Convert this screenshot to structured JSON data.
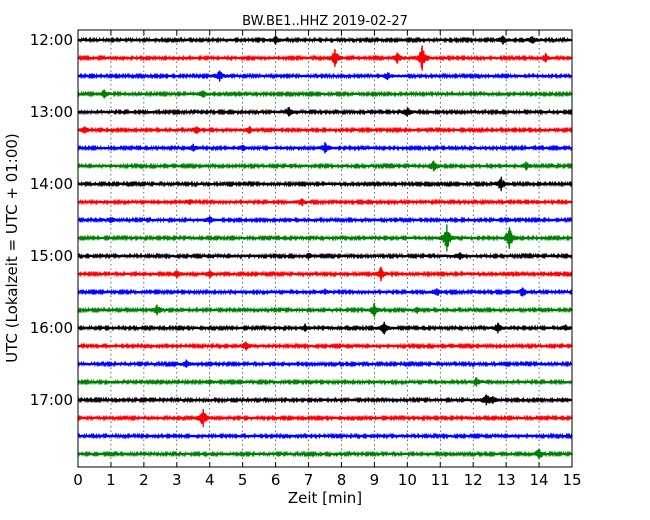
{
  "chart_data": {
    "type": "line",
    "title": "BW.BE1..HHZ 2019-02-27",
    "xlabel": "Zeit  [min]",
    "ylabel": "UTC (Lokalzeit = UTC + 01:00)",
    "xlim": [
      0,
      15
    ],
    "x_ticks": [
      "0",
      "1",
      "2",
      "3",
      "4",
      "5",
      "6",
      "7",
      "8",
      "9",
      "10",
      "11",
      "12",
      "13",
      "14",
      "15"
    ],
    "y_ticks": [
      "12:00",
      "13:00",
      "14:00",
      "15:00",
      "16:00",
      "17:00"
    ],
    "grid": "vertical dotted lines at each minute",
    "trace_colors": [
      "#000000",
      "#ff0000",
      "#0000ff",
      "#008000"
    ],
    "trace_interval_min": 15,
    "traces": [
      {
        "start": "12:00",
        "events": [
          [
            6.0,
            0.5
          ],
          [
            12.9,
            0.5
          ],
          [
            13.8,
            0.4
          ]
        ]
      },
      {
        "start": "12:15",
        "events": [
          [
            7.8,
            1.0
          ],
          [
            9.7,
            0.6
          ],
          [
            10.45,
            1.4
          ],
          [
            14.2,
            0.5
          ]
        ]
      },
      {
        "start": "12:30",
        "events": [
          [
            4.3,
            0.6
          ],
          [
            9.4,
            0.4
          ]
        ]
      },
      {
        "start": "12:45",
        "events": [
          [
            0.8,
            0.5
          ],
          [
            3.8,
            0.4
          ]
        ]
      },
      {
        "start": "13:00",
        "events": [
          [
            6.4,
            0.5
          ],
          [
            10.0,
            0.5
          ]
        ]
      },
      {
        "start": "13:15",
        "events": [
          [
            0.2,
            0.4
          ],
          [
            3.6,
            0.4
          ],
          [
            5.2,
            0.4
          ]
        ]
      },
      {
        "start": "13:30",
        "events": [
          [
            3.5,
            0.4
          ],
          [
            7.5,
            0.6
          ],
          [
            5.0,
            0.3
          ]
        ]
      },
      {
        "start": "13:45",
        "events": [
          [
            10.8,
            0.6
          ],
          [
            13.6,
            0.5
          ]
        ]
      },
      {
        "start": "14:00",
        "events": [
          [
            12.85,
            0.8
          ]
        ]
      },
      {
        "start": "14:15",
        "events": [
          [
            6.8,
            0.4
          ],
          [
            3.4,
            0.3
          ]
        ]
      },
      {
        "start": "14:30",
        "events": [
          [
            4.0,
            0.4
          ],
          [
            1.0,
            0.3
          ]
        ]
      },
      {
        "start": "14:45",
        "events": [
          [
            11.2,
            1.5
          ],
          [
            13.1,
            1.2
          ]
        ]
      },
      {
        "start": "15:00",
        "events": [
          [
            11.6,
            0.4
          ],
          [
            7.0,
            0.3
          ]
        ]
      },
      {
        "start": "15:15",
        "events": [
          [
            3.0,
            0.4
          ],
          [
            4.0,
            0.4
          ],
          [
            9.2,
            0.8
          ]
        ]
      },
      {
        "start": "15:30",
        "events": [
          [
            10.9,
            0.4
          ],
          [
            13.5,
            0.5
          ],
          [
            7.5,
            0.3
          ]
        ]
      },
      {
        "start": "15:45",
        "events": [
          [
            2.4,
            0.6
          ],
          [
            9.0,
            0.8
          ],
          [
            10.3,
            0.3
          ]
        ]
      },
      {
        "start": "16:00",
        "events": [
          [
            6.9,
            0.4
          ],
          [
            9.3,
            0.7
          ],
          [
            12.75,
            0.6
          ],
          [
            14.8,
            0.3
          ]
        ]
      },
      {
        "start": "16:15",
        "events": [
          [
            5.1,
            0.5
          ]
        ]
      },
      {
        "start": "16:30",
        "events": [
          [
            3.3,
            0.4
          ]
        ]
      },
      {
        "start": "16:45",
        "events": [
          [
            4.0,
            0.3
          ],
          [
            12.1,
            0.5
          ]
        ]
      },
      {
        "start": "17:00",
        "events": [
          [
            12.4,
            0.6
          ],
          [
            12.6,
            0.4
          ]
        ]
      },
      {
        "start": "17:15",
        "events": [
          [
            3.8,
            1.0
          ]
        ]
      },
      {
        "start": "17:30",
        "events": []
      },
      {
        "start": "17:45",
        "events": [
          [
            14.0,
            0.6
          ]
        ]
      }
    ]
  }
}
